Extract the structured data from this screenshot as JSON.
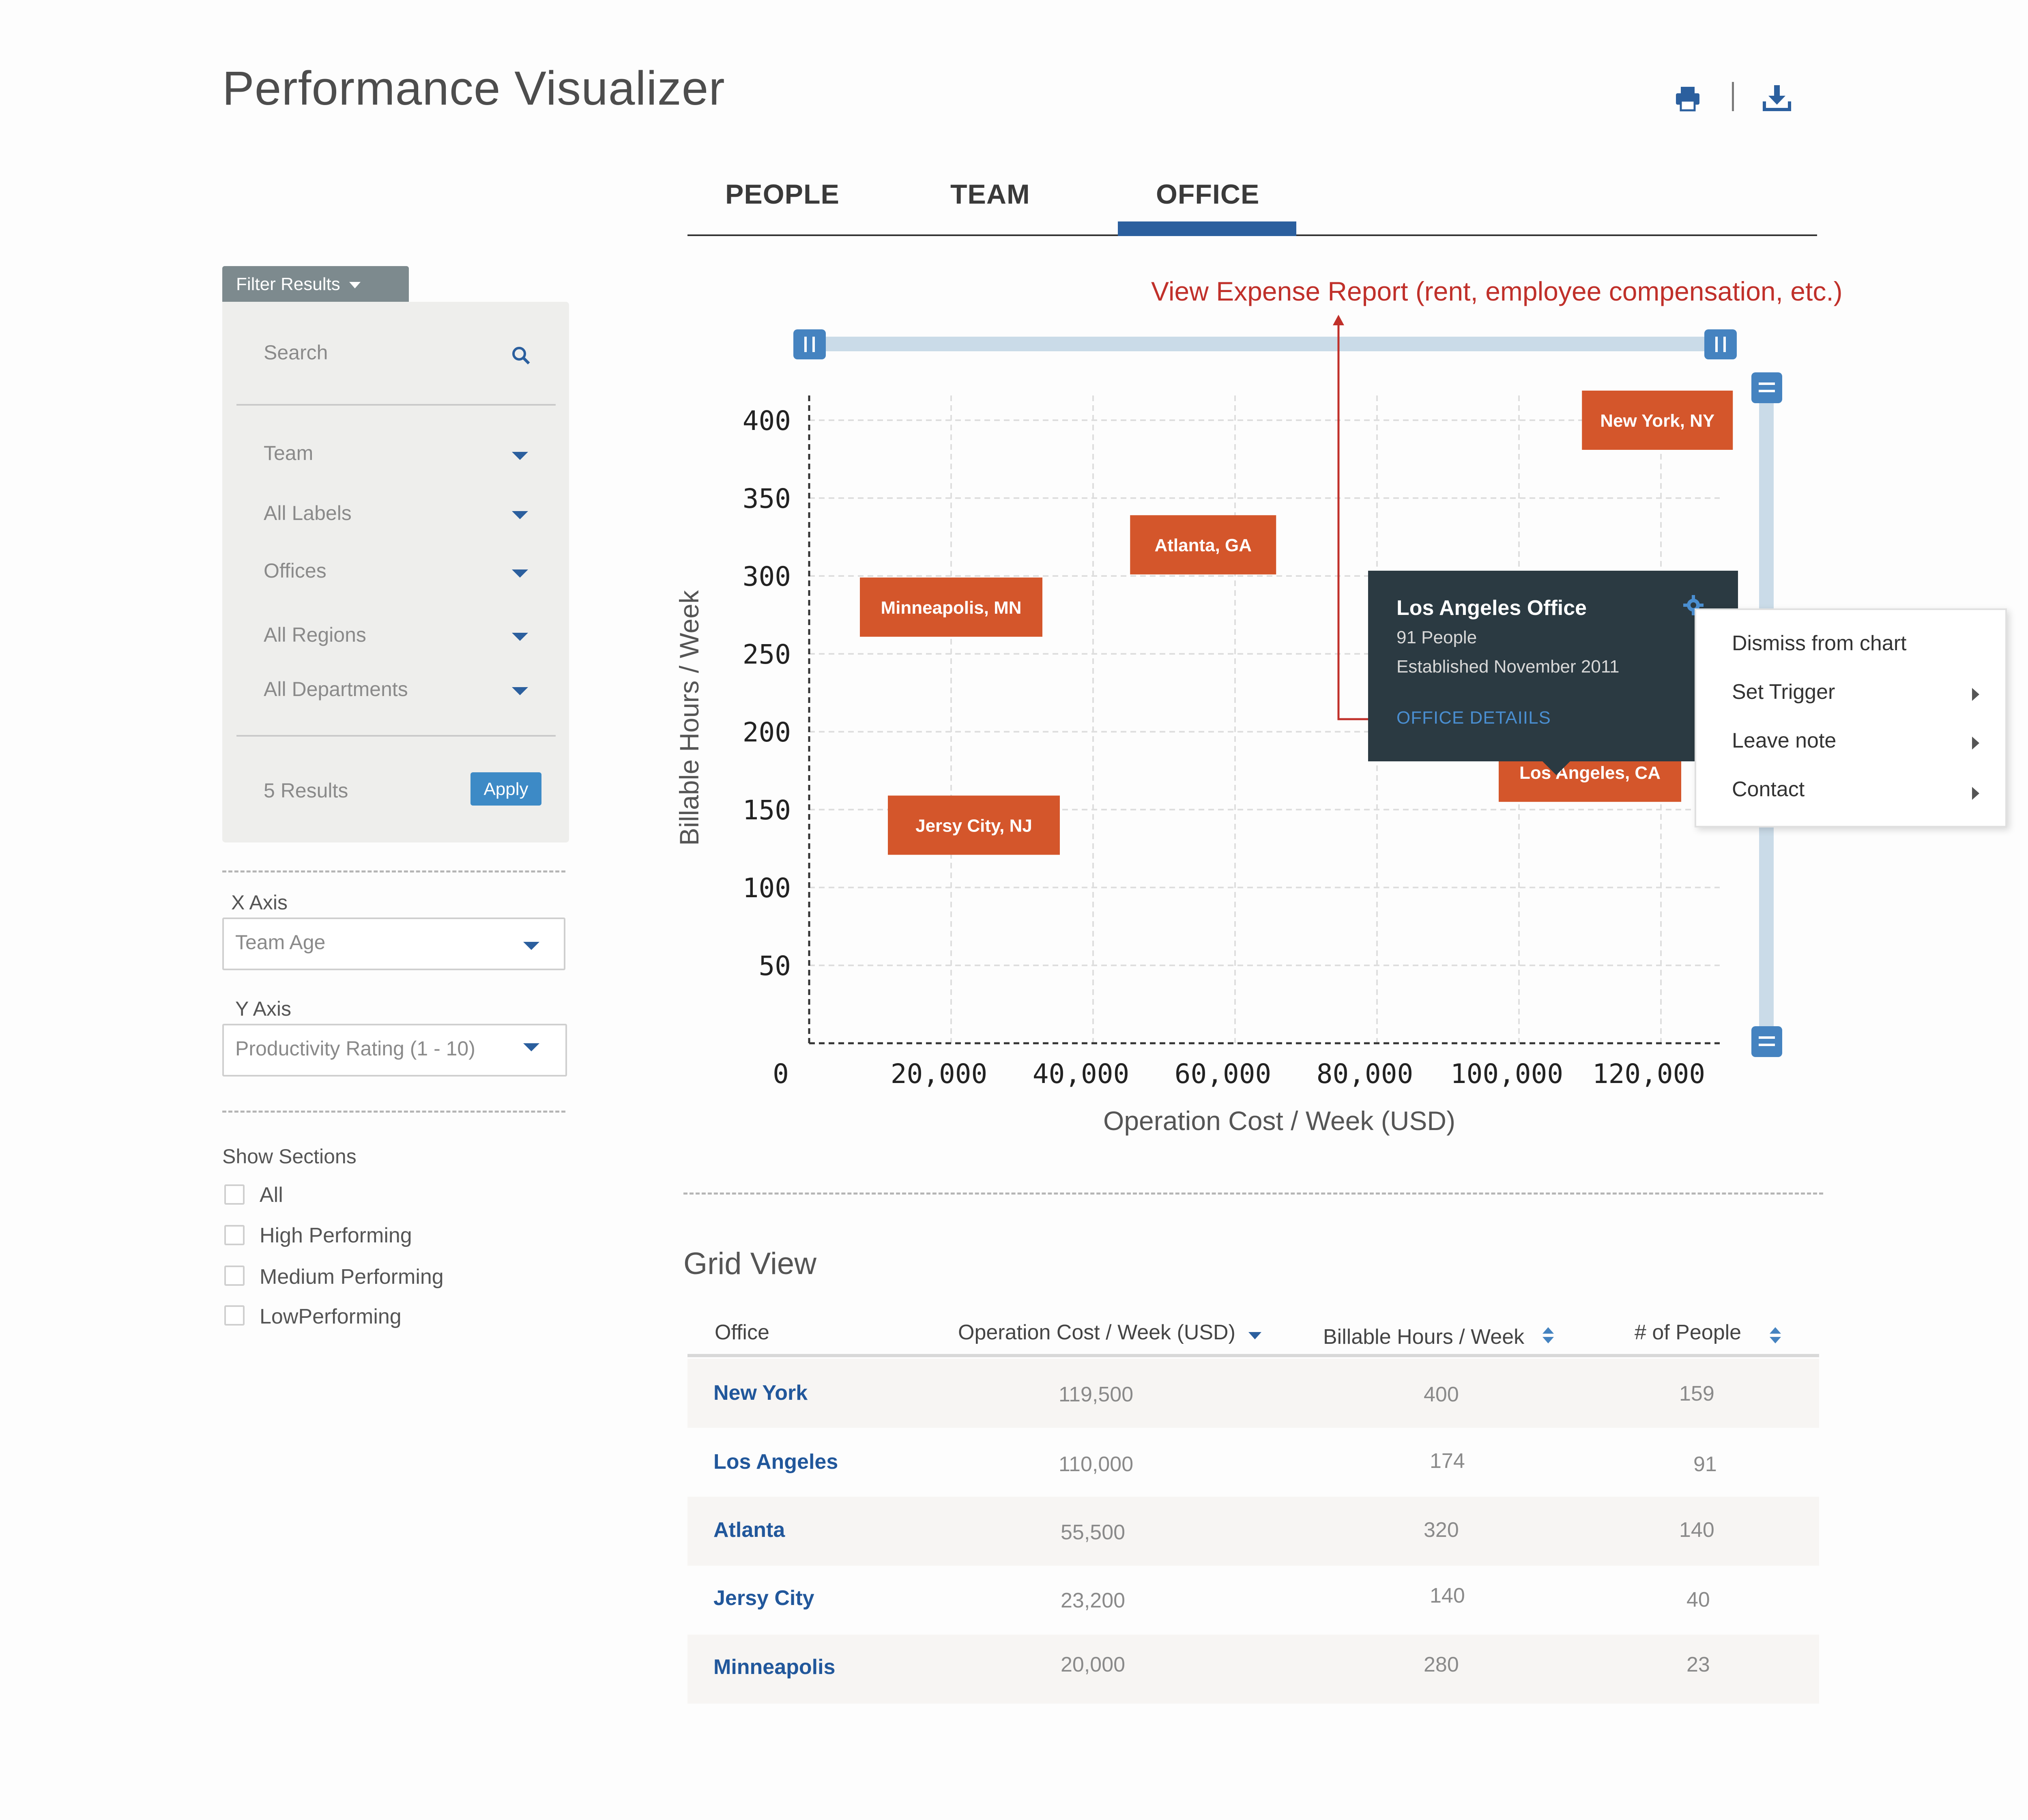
{
  "header": {
    "title": "Performance Visualizer",
    "icons": [
      "print-icon",
      "download-icon"
    ]
  },
  "tabs": {
    "items": [
      "PEOPLE",
      "TEAM",
      "OFFICE"
    ],
    "active": "OFFICE"
  },
  "filter": {
    "button_label": "Filter Results",
    "search_placeholder": "Search",
    "dropdowns": [
      "Team",
      "All Labels",
      "Offices",
      "All Regions",
      "All Departments"
    ],
    "results_text": "5 Results",
    "apply_label": "Apply"
  },
  "axes_controls": {
    "x_label": "X Axis",
    "x_value": "Team Age",
    "y_label": "Y Axis",
    "y_value": "Productivity Rating (1 - 10)"
  },
  "sections": {
    "title": "Show Sections",
    "items": [
      "All",
      "High Performing",
      "Medium Performing",
      "LowPerforming"
    ]
  },
  "annotation": {
    "expense_report": "View Expense Report (rent, employee compensation, etc.)"
  },
  "chart_data": {
    "type": "scatter",
    "xlabel": "Operation Cost / Week (USD)",
    "ylabel": "Billable Hours / Week",
    "x_ticks": [
      "0",
      "20,000",
      "40,000",
      "60,000",
      "80,000",
      "100,000",
      "120,000"
    ],
    "y_ticks": [
      "50",
      "100",
      "150",
      "200",
      "250",
      "300",
      "350",
      "400"
    ],
    "xlim": [
      0,
      130000
    ],
    "ylim": [
      0,
      420
    ],
    "points": [
      {
        "label": "New York, NY",
        "x": 119500,
        "y": 400
      },
      {
        "label": "Atlanta, GA",
        "x": 55500,
        "y": 320
      },
      {
        "label": "Minneapolis, MN",
        "x": 20000,
        "y": 280
      },
      {
        "label": "Los Angeles, CA",
        "x": 110000,
        "y": 174
      },
      {
        "label": "Jersy City, NJ",
        "x": 23200,
        "y": 140
      }
    ],
    "marker_color": "#d4562b",
    "grid": true
  },
  "tooltip": {
    "title": "Los Angeles Office",
    "people": "91 People",
    "established": "Established November 2011",
    "link": "OFFICE DETAIILS"
  },
  "context_menu": {
    "items": [
      "Dismiss from chart",
      "Set Trigger",
      "Leave note",
      "Contact"
    ]
  },
  "grid": {
    "title": "Grid View",
    "columns": [
      "Office",
      "Operation Cost / Week (USD)",
      "Billable Hours / Week",
      "# of People"
    ],
    "rows": [
      {
        "office": "New York",
        "cost": "119,500",
        "hours": "400",
        "people": "159"
      },
      {
        "office": "Los Angeles",
        "cost": "110,000",
        "hours": "174",
        "people": "91"
      },
      {
        "office": "Atlanta",
        "cost": "55,500",
        "hours": "320",
        "people": "140"
      },
      {
        "office": "Jersy City",
        "cost": "23,200",
        "hours": "140",
        "people": "40"
      },
      {
        "office": "Minneapolis",
        "cost": "20,000",
        "hours": "280",
        "people": "23"
      }
    ]
  },
  "colors": {
    "accent": "#2b5f9e",
    "marker": "#d4562b",
    "annotation": "#c0302a",
    "tooltip_bg": "#2b3a42",
    "slider": "#cadbe8"
  }
}
